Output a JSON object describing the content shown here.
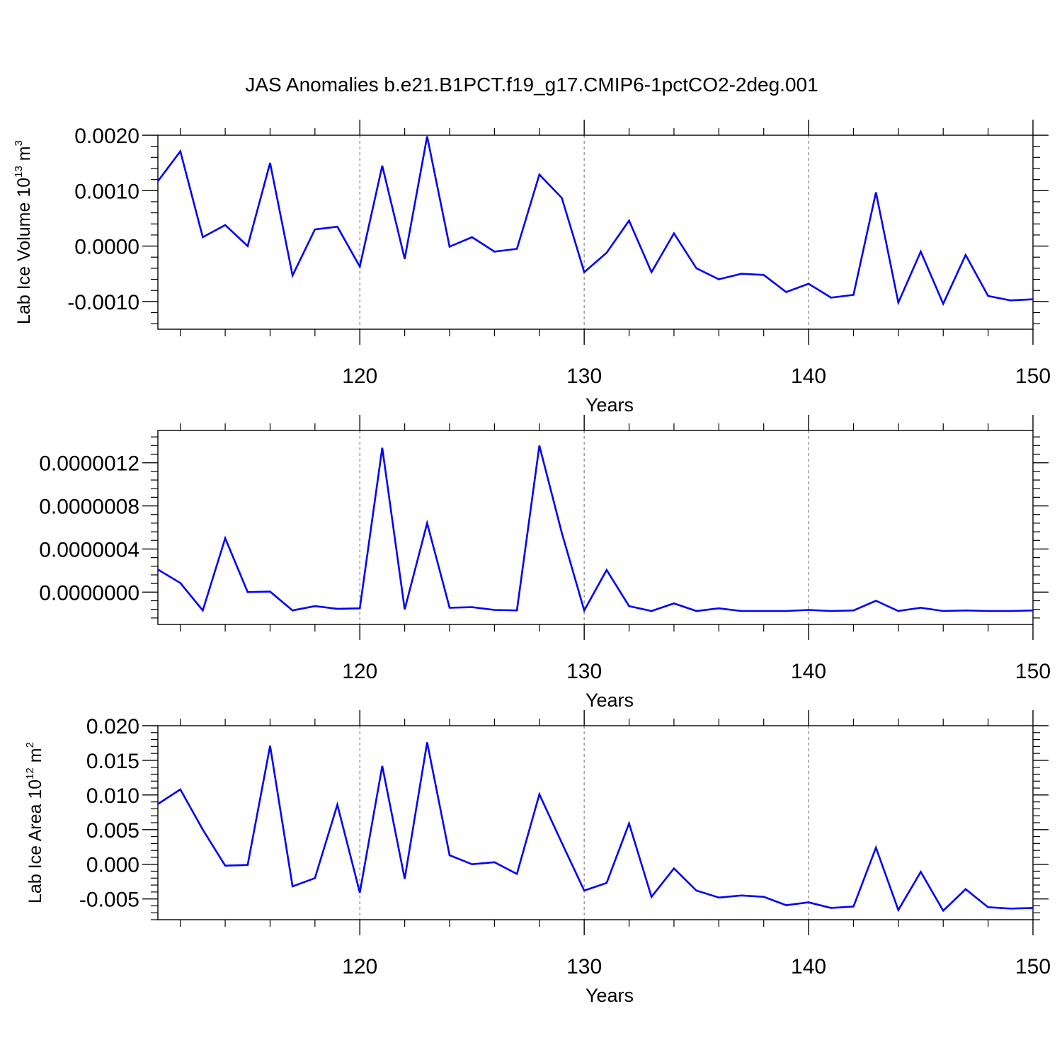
{
  "figure": {
    "title": "JAS Anomalies b.e21.B1PCT.f19_g17.CMIP6-1pctCO2-2deg.001"
  },
  "style": {
    "line_color": "#0000ff",
    "axis_color": "#000000",
    "grid_color": "#808080"
  },
  "chart_data": [
    {
      "type": "line",
      "title": "JAS Anomalies b.e21.B1PCT.f19_g17.CMIP6-1pctCO2-2deg.001",
      "xlabel": "Years",
      "ylabel": "Lab Ice Volume 10",
      "ylabel_sup": "13",
      "ylabel_unit": " m",
      "ylabel_unit_sup": "3",
      "xlim": [
        111,
        150
      ],
      "ylim": [
        -0.0015,
        0.002
      ],
      "xticks": [
        120,
        130,
        140,
        150
      ],
      "xtick_labels": [
        "120",
        "130",
        "140",
        "150"
      ],
      "yticks": [
        -0.001,
        0.0,
        0.001,
        0.002
      ],
      "ytick_labels": [
        "-0.0010",
        "0.0000",
        "0.0010",
        "0.0020"
      ],
      "grid": "vertical dashed at major x ticks",
      "x": [
        111,
        112,
        113,
        114,
        115,
        116,
        117,
        118,
        119,
        120,
        121,
        122,
        123,
        124,
        125,
        126,
        127,
        128,
        129,
        130,
        131,
        132,
        133,
        134,
        135,
        136,
        137,
        138,
        139,
        140,
        141,
        142,
        143,
        144,
        145,
        146,
        147,
        148,
        149,
        150
      ],
      "series": [
        {
          "values": [
            0.00117,
            0.00171,
            0.00016,
            0.00038,
            0.0,
            0.0015,
            -0.00053,
            0.0003,
            0.00035,
            -0.00037,
            0.00145,
            -0.00023,
            0.00198,
            -1e-05,
            0.00016,
            -0.0001,
            -5e-05,
            0.00129,
            0.00087,
            -0.00047,
            -0.00012,
            0.00046,
            -0.00047,
            0.00023,
            -0.0004,
            -0.0006,
            -0.0005,
            -0.00052,
            -0.00083,
            -0.00068,
            -0.00093,
            -0.00088,
            0.00097,
            -0.00102,
            -0.0001,
            -0.00104,
            -0.00016,
            -0.0009,
            -0.00098,
            -0.00096
          ]
        }
      ]
    },
    {
      "type": "line",
      "xlabel": "Years",
      "ylabel": "",
      "xlim": [
        111,
        150
      ],
      "ylim": [
        -3e-07,
        1.5e-06
      ],
      "xticks": [
        120,
        130,
        140,
        150
      ],
      "xtick_labels": [
        "120",
        "130",
        "140",
        "150"
      ],
      "yticks": [
        0.0,
        4e-07,
        8e-07,
        1.2e-06
      ],
      "ytick_labels": [
        "0.0000000",
        "0.0000004",
        "0.0000008",
        "0.0000012"
      ],
      "grid": "vertical dashed at major x ticks",
      "x": [
        111,
        112,
        113,
        114,
        115,
        116,
        117,
        118,
        119,
        120,
        121,
        122,
        123,
        124,
        125,
        126,
        127,
        128,
        129,
        130,
        131,
        132,
        133,
        134,
        135,
        136,
        137,
        138,
        139,
        140,
        141,
        142,
        143,
        144,
        145,
        146,
        147,
        148,
        149,
        150
      ],
      "series": [
        {
          "values": [
            2.1e-07,
            8.5e-08,
            -1.7e-07,
            5e-07,
            0.0,
            5e-09,
            -1.7e-07,
            -1.3e-07,
            -1.55e-07,
            -1.5e-07,
            1.34e-06,
            -1.6e-07,
            6.4e-07,
            -1.45e-07,
            -1.4e-07,
            -1.65e-07,
            -1.7e-07,
            1.36e-06,
            5.5e-07,
            -1.7e-07,
            2.05e-07,
            -1.3e-07,
            -1.75e-07,
            -1.05e-07,
            -1.75e-07,
            -1.5e-07,
            -1.75e-07,
            -1.75e-07,
            -1.75e-07,
            -1.65e-07,
            -1.75e-07,
            -1.7e-07,
            -8e-08,
            -1.75e-07,
            -1.45e-07,
            -1.75e-07,
            -1.7e-07,
            -1.75e-07,
            -1.75e-07,
            -1.7e-07
          ]
        }
      ]
    },
    {
      "type": "line",
      "xlabel": "Years",
      "ylabel": "Lab Ice Area 10",
      "ylabel_sup": "12",
      "ylabel_unit": " m",
      "ylabel_unit_sup": "2",
      "xlim": [
        111,
        150
      ],
      "ylim": [
        -0.008,
        0.02
      ],
      "xticks": [
        120,
        130,
        140,
        150
      ],
      "xtick_labels": [
        "120",
        "130",
        "140",
        "150"
      ],
      "yticks": [
        -0.005,
        0.0,
        0.005,
        0.01,
        0.015,
        0.02
      ],
      "ytick_labels": [
        "-0.005",
        "0.000",
        "0.005",
        "0.010",
        "0.015",
        "0.020"
      ],
      "grid": "vertical dashed at major x ticks",
      "x": [
        111,
        112,
        113,
        114,
        115,
        116,
        117,
        118,
        119,
        120,
        121,
        122,
        123,
        124,
        125,
        126,
        127,
        128,
        129,
        130,
        131,
        132,
        133,
        134,
        135,
        136,
        137,
        138,
        139,
        140,
        141,
        142,
        143,
        144,
        145,
        146,
        147,
        148,
        149,
        150
      ],
      "series": [
        {
          "values": [
            0.0087,
            0.0108,
            0.005,
            -0.0002,
            -0.0001,
            0.0171,
            -0.0032,
            -0.002,
            0.0086,
            -0.0041,
            0.0142,
            -0.0021,
            0.0176,
            0.0013,
            0.0,
            0.0003,
            -0.0014,
            0.0101,
            0.0031,
            -0.0038,
            -0.0027,
            0.0059,
            -0.0047,
            -0.0006,
            -0.0038,
            -0.0048,
            -0.0045,
            -0.0047,
            -0.0059,
            -0.0055,
            -0.0063,
            -0.0061,
            0.0024,
            -0.0066,
            -0.0011,
            -0.0067,
            -0.0036,
            -0.0062,
            -0.0064,
            -0.0063
          ]
        }
      ]
    }
  ]
}
